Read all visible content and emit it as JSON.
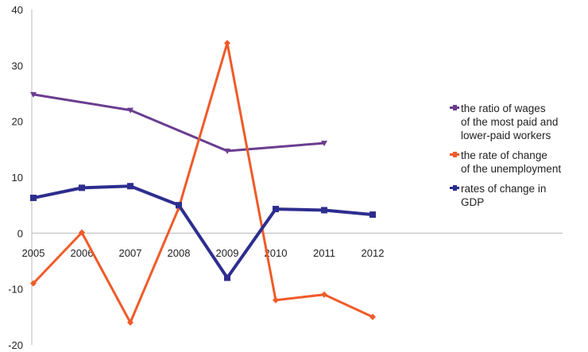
{
  "chart_data": {
    "type": "line",
    "categories": [
      "2005",
      "2006",
      "2007",
      "2008",
      "2009",
      "2010",
      "2011",
      "2012"
    ],
    "ylim": [
      -20,
      40
    ],
    "yticks": [
      "40",
      "30",
      "20",
      "10",
      "0",
      "-10",
      "-20"
    ],
    "grid": false,
    "legend_position": "right",
    "series": [
      {
        "name": "the ratio of wages of the most paid and lower-paid workers",
        "name_lines": [
          "the ratio of wages",
          "of the most paid and",
          "lower-paid workers"
        ],
        "color": "#6a3d8f",
        "values": [
          24.8,
          null,
          22,
          null,
          14.7,
          null,
          16.1,
          null
        ]
      },
      {
        "name": "the rate of change of the unemployment",
        "name_lines": [
          "the rate of change",
          "of the unemployment"
        ],
        "color": "#f05a28",
        "values": [
          -9,
          0.1,
          -16,
          4.5,
          34,
          -12,
          -11,
          -15
        ]
      },
      {
        "name": "rates of change in GDP",
        "name_lines": [
          "rates of  change in",
          "GDP"
        ],
        "color": "#2d2d8f",
        "values": [
          6.3,
          8.1,
          8.4,
          5,
          -8,
          4.3,
          4.1,
          3.3
        ]
      }
    ]
  }
}
